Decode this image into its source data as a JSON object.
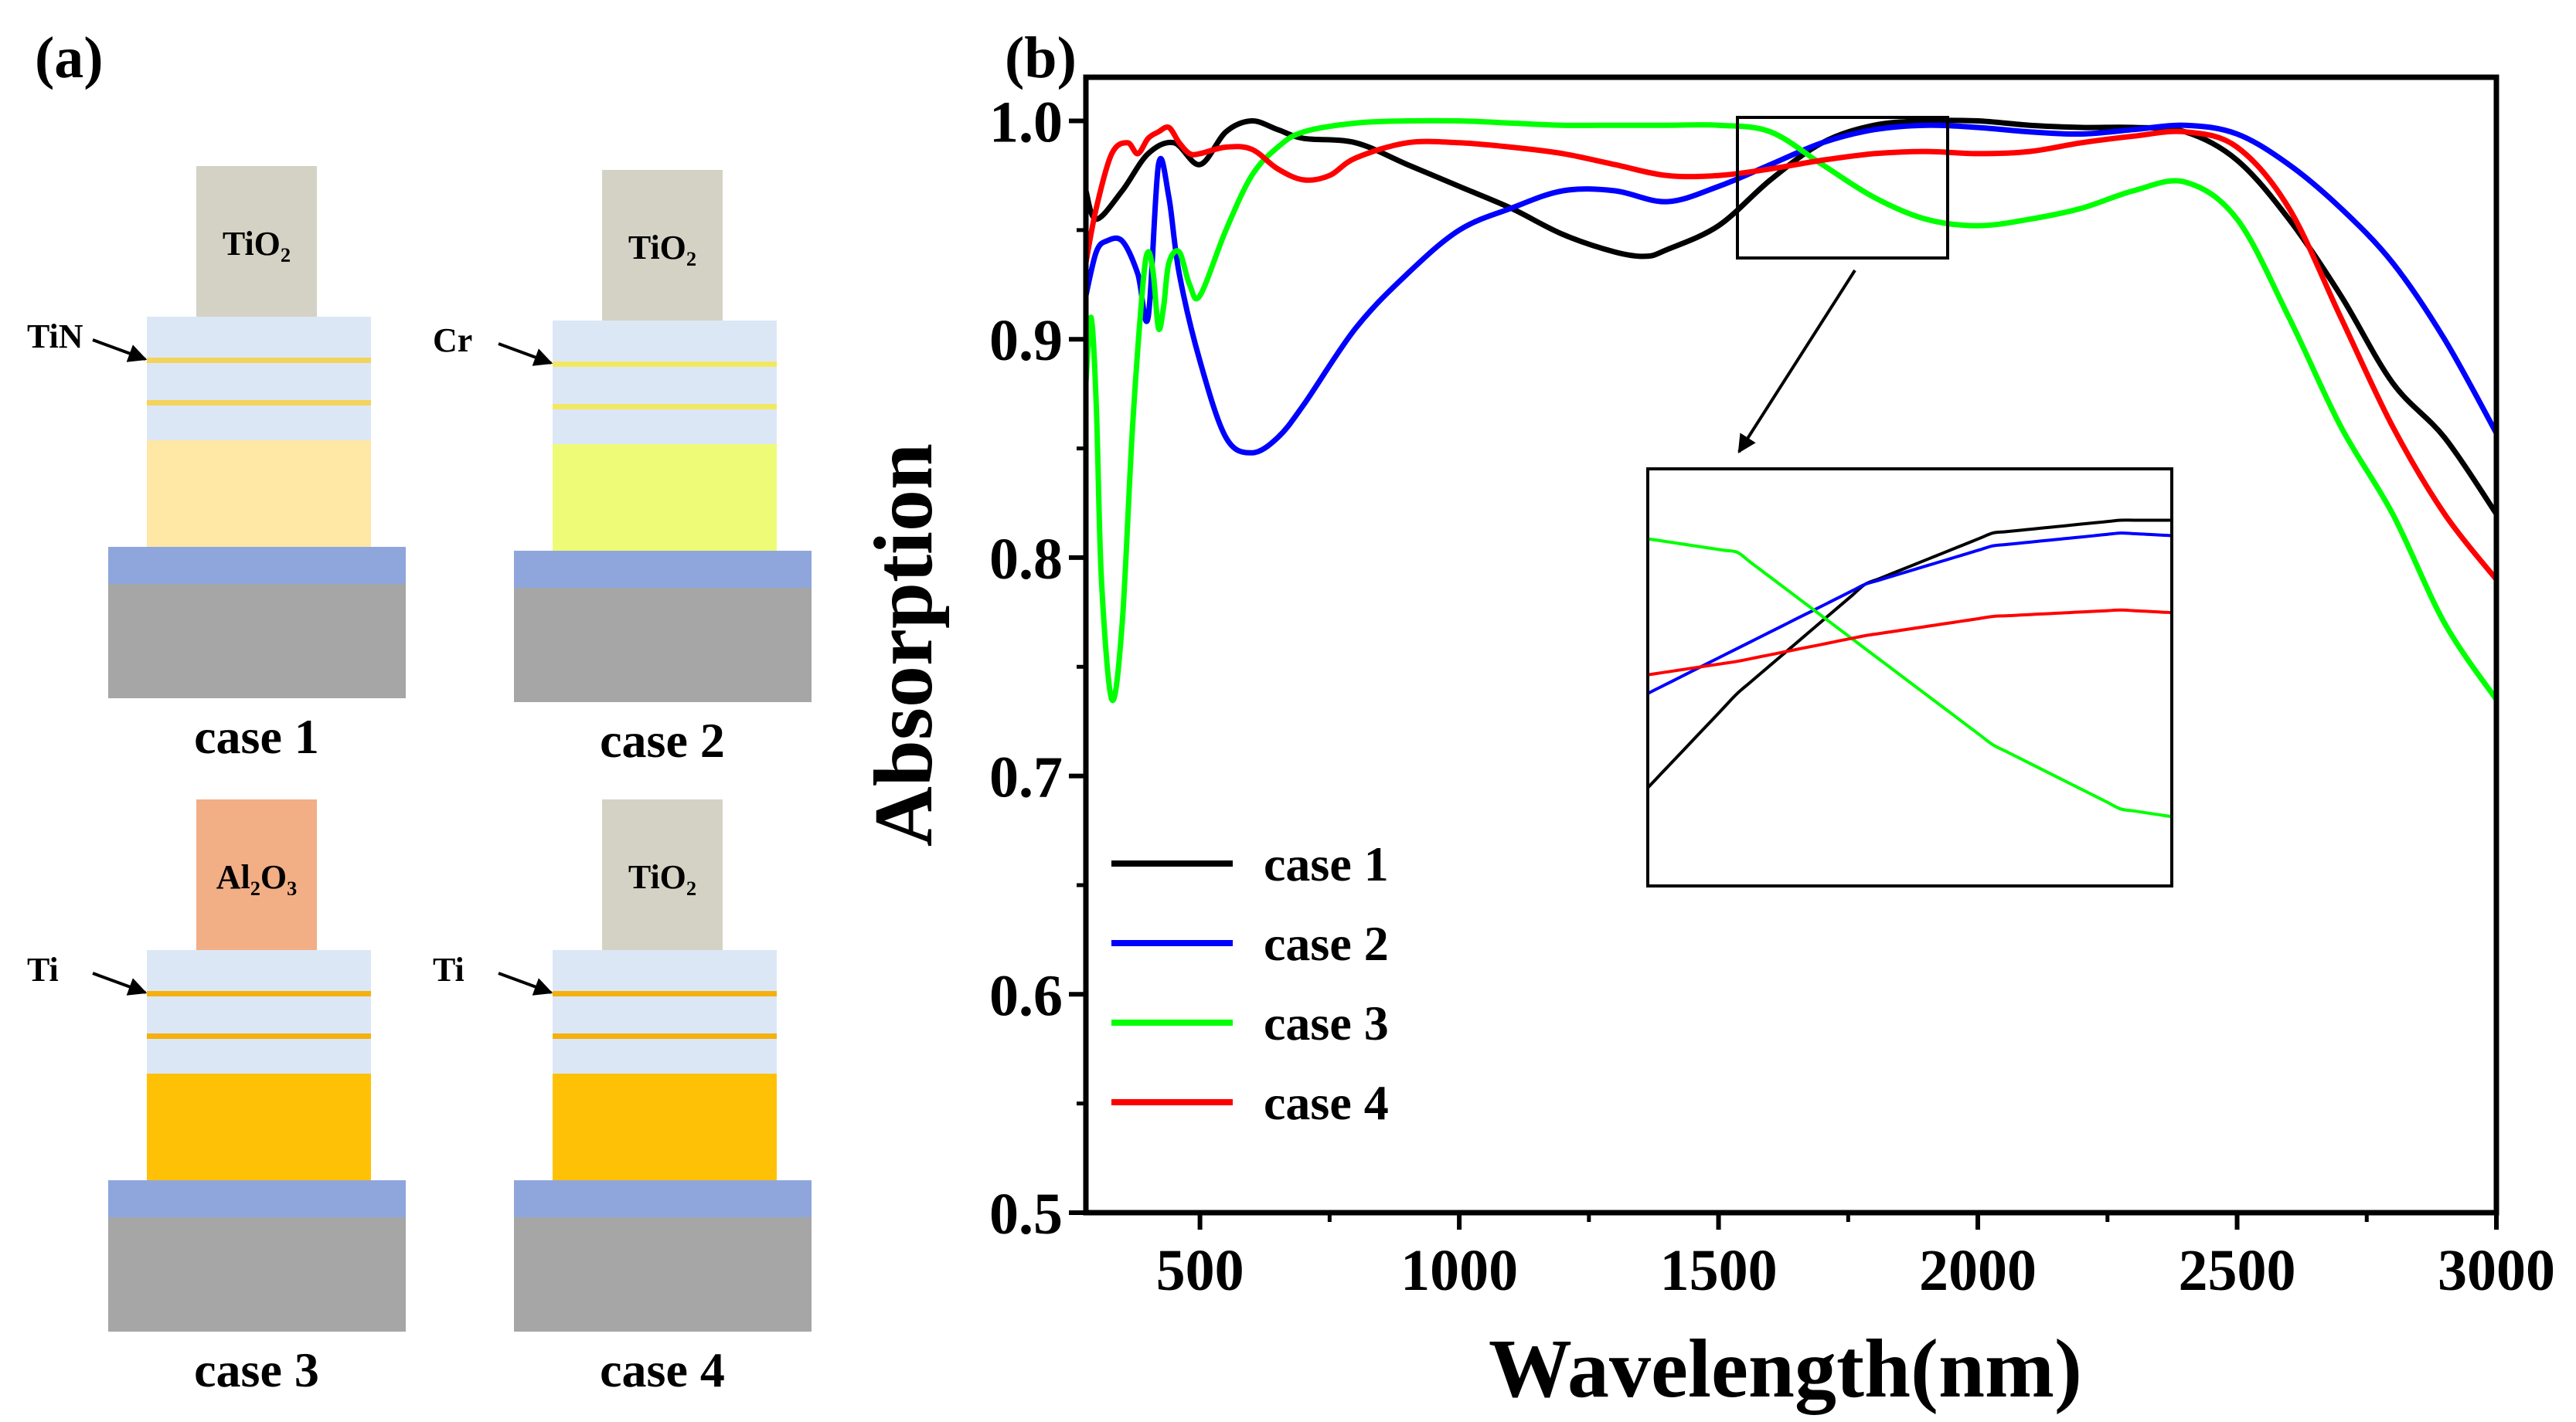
{
  "panel_a": {
    "label": "(a)",
    "cases": [
      {
        "caption": "case 1",
        "cap_material": "TiO₂",
        "cap_color": "#D3D2C4",
        "metal_label": "TiN",
        "metal_color": "#FFE7A6",
        "thin_color": "#F3D35A"
      },
      {
        "caption": "case 2",
        "cap_material": "TiO₂",
        "cap_color": "#D3D2C4",
        "metal_label": "Cr",
        "metal_color": "#EEFB77",
        "thin_color": "#F2E860"
      },
      {
        "caption": "case 3",
        "cap_material": "Al₂O₃",
        "cap_color": "#F2AE85",
        "metal_label": "Ti",
        "metal_color": "#FFC106",
        "thin_color": "#F4B00E"
      },
      {
        "caption": "case 4",
        "cap_material": "TiO₂",
        "cap_color": "#D3D2C4",
        "metal_label": "Ti",
        "metal_color": "#FFC106",
        "thin_color": "#F4B00E"
      }
    ],
    "layer_colors": {
      "dielectric": "#DCE7F6",
      "spacer": "#8FA6DC",
      "substrate": "#A6A6A6"
    }
  },
  "chart_data": {
    "type": "line",
    "panel_label": "(b)",
    "title": "",
    "xlabel": "Wavelength(nm)",
    "ylabel": "Absorption",
    "xlim": [
      280,
      3000
    ],
    "ylim": [
      0.5,
      1.02
    ],
    "xticks": [
      500,
      1000,
      1500,
      2000,
      2500,
      3000
    ],
    "xtick_labels": [
      "500",
      "1000",
      "1500",
      "2000",
      "2500",
      "3000"
    ],
    "yticks": [
      0.5,
      0.6,
      0.7,
      0.8,
      0.9,
      1.0
    ],
    "ytick_labels": [
      "0.5",
      "0.6",
      "0.7",
      "0.8",
      "0.9",
      "1.0"
    ],
    "legend_position": "bottom-left",
    "inset_window": {
      "xlim": [
        1530,
        1940
      ],
      "ylim": [
        0.943,
        1.008
      ]
    },
    "series": [
      {
        "name": "case 1",
        "color": "#000000",
        "x": [
          280,
          300,
          350,
          400,
          450,
          500,
          550,
          600,
          650,
          700,
          800,
          900,
          1000,
          1100,
          1200,
          1300,
          1360,
          1400,
          1500,
          1600,
          1700,
          1800,
          1900,
          2000,
          2100,
          2200,
          2300,
          2400,
          2500,
          2600,
          2700,
          2800,
          2900,
          3000
        ],
        "y": [
          0.968,
          0.955,
          0.968,
          0.985,
          0.99,
          0.98,
          0.995,
          1.0,
          0.996,
          0.992,
          0.99,
          0.98,
          0.97,
          0.96,
          0.948,
          0.94,
          0.938,
          0.941,
          0.952,
          0.973,
          0.99,
          0.998,
          1.0,
          1.0,
          0.998,
          0.997,
          0.997,
          0.995,
          0.982,
          0.955,
          0.92,
          0.88,
          0.855,
          0.82
        ]
      },
      {
        "name": "case 2",
        "color": "#0000FF",
        "x": [
          280,
          300,
          320,
          350,
          380,
          400,
          420,
          440,
          460,
          500,
          550,
          600,
          650,
          700,
          800,
          900,
          1000,
          1100,
          1200,
          1300,
          1400,
          1500,
          1600,
          1700,
          1800,
          1900,
          2000,
          2100,
          2200,
          2300,
          2400,
          2500,
          2600,
          2700,
          2800,
          2900,
          3000
        ],
        "y": [
          0.92,
          0.94,
          0.945,
          0.945,
          0.93,
          0.91,
          0.98,
          0.965,
          0.93,
          0.89,
          0.855,
          0.848,
          0.855,
          0.87,
          0.905,
          0.93,
          0.95,
          0.96,
          0.968,
          0.968,
          0.963,
          0.97,
          0.98,
          0.99,
          0.996,
          0.998,
          0.997,
          0.995,
          0.994,
          0.996,
          0.998,
          0.994,
          0.98,
          0.96,
          0.935,
          0.9,
          0.857
        ]
      },
      {
        "name": "case 3",
        "color": "#00FF00",
        "x": [
          280,
          290,
          300,
          310,
          330,
          350,
          370,
          390,
          400,
          410,
          420,
          430,
          440,
          460,
          480,
          500,
          550,
          600,
          650,
          700,
          800,
          900,
          1000,
          1100,
          1200,
          1300,
          1400,
          1500,
          1600,
          1700,
          1800,
          1900,
          2000,
          2100,
          2200,
          2300,
          2400,
          2500,
          2600,
          2700,
          2800,
          2900,
          3000
        ],
        "y": [
          0.88,
          0.91,
          0.87,
          0.79,
          0.735,
          0.77,
          0.86,
          0.925,
          0.94,
          0.93,
          0.905,
          0.915,
          0.935,
          0.94,
          0.925,
          0.92,
          0.95,
          0.975,
          0.988,
          0.995,
          0.999,
          1.0,
          1.0,
          0.999,
          0.998,
          0.998,
          0.998,
          0.998,
          0.995,
          0.98,
          0.965,
          0.955,
          0.952,
          0.955,
          0.96,
          0.968,
          0.972,
          0.955,
          0.91,
          0.86,
          0.82,
          0.77,
          0.735
        ]
      },
      {
        "name": "case 4",
        "color": "#FF0000",
        "x": [
          280,
          300,
          330,
          360,
          380,
          400,
          420,
          440,
          460,
          480,
          500,
          550,
          600,
          650,
          700,
          750,
          800,
          900,
          1000,
          1100,
          1200,
          1300,
          1400,
          1500,
          1600,
          1700,
          1800,
          1900,
          2000,
          2100,
          2200,
          2300,
          2400,
          2500,
          2600,
          2700,
          2800,
          2900,
          3000
        ],
        "y": [
          0.935,
          0.96,
          0.985,
          0.99,
          0.985,
          0.992,
          0.995,
          0.997,
          0.99,
          0.985,
          0.985,
          0.988,
          0.987,
          0.978,
          0.973,
          0.975,
          0.983,
          0.99,
          0.99,
          0.988,
          0.985,
          0.98,
          0.975,
          0.975,
          0.978,
          0.982,
          0.985,
          0.986,
          0.985,
          0.986,
          0.99,
          0.993,
          0.995,
          0.988,
          0.96,
          0.91,
          0.86,
          0.82,
          0.79
        ]
      }
    ]
  }
}
